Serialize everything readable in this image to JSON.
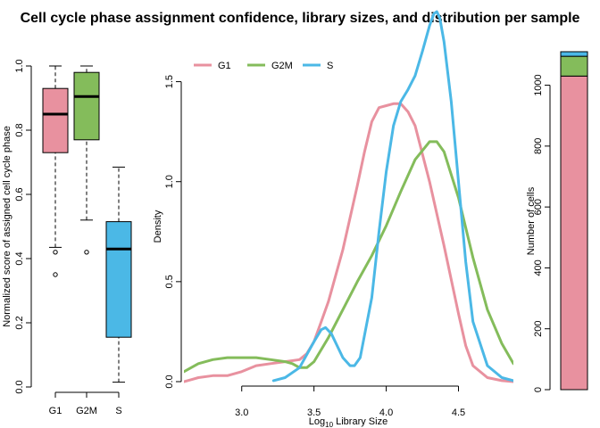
{
  "chart_data": [
    {
      "type": "box",
      "title": "Cell cycle phase assignment confidence, library sizes, and distribution per sample",
      "ylabel": "Normalized score of assigned cell cycle phase",
      "ylim": [
        0,
        1
      ],
      "yticks": [
        0.0,
        0.2,
        0.4,
        0.6,
        0.8,
        1.0
      ],
      "ytick_labels": [
        "0.0",
        "0.2",
        "0.4",
        "0.6",
        "0.8",
        "1.0"
      ],
      "categories": [
        "G1",
        "G2M",
        "S"
      ],
      "boxes": [
        {
          "name": "G1",
          "color": "#E8919F",
          "whisker_low": 0.435,
          "q1": 0.73,
          "median": 0.85,
          "q3": 0.93,
          "whisker_high": 1.0,
          "outliers": [
            0.42,
            0.35
          ]
        },
        {
          "name": "G2M",
          "color": "#84BC5B",
          "whisker_low": 0.52,
          "q1": 0.77,
          "median": 0.905,
          "q3": 0.98,
          "whisker_high": 1.0,
          "outliers": [
            0.42
          ]
        },
        {
          "name": "S",
          "color": "#4BB8E6",
          "whisker_low": 0.015,
          "q1": 0.155,
          "median": 0.43,
          "q3": 0.515,
          "whisker_high": 0.685,
          "outliers": []
        }
      ]
    },
    {
      "type": "line",
      "ylabel": "Density",
      "xlabel_prefix": "Log",
      "xlabel_sub": "10",
      "xlabel_suffix": " Library Size",
      "xlim": [
        2.6,
        4.88
      ],
      "ylim": [
        0,
        1.73
      ],
      "xticks": [
        3.0,
        3.5,
        4.0,
        4.5
      ],
      "xtick_labels": [
        "3.0",
        "3.5",
        "4.0",
        "4.5"
      ],
      "yticks": [
        0.0,
        0.5,
        1.0,
        1.5
      ],
      "ytick_labels": [
        "0.0",
        "0.5",
        "1.0",
        "1.5"
      ],
      "legend": [
        "G1",
        "G2M",
        "S"
      ],
      "series": [
        {
          "name": "G1",
          "color": "#E8919F",
          "x": [
            2.6,
            2.65,
            2.7,
            2.8,
            2.9,
            3.0,
            3.1,
            3.2,
            3.3,
            3.4,
            3.45,
            3.5,
            3.55,
            3.6,
            3.7,
            3.8,
            3.85,
            3.9,
            3.95,
            4.0,
            4.05,
            4.1,
            4.15,
            4.2,
            4.3,
            4.4,
            4.5,
            4.55,
            4.6,
            4.7,
            4.8,
            4.88
          ],
          "y": [
            0.0,
            0.01,
            0.02,
            0.03,
            0.03,
            0.05,
            0.08,
            0.09,
            0.1,
            0.11,
            0.14,
            0.2,
            0.3,
            0.4,
            0.66,
            0.98,
            1.15,
            1.3,
            1.37,
            1.38,
            1.39,
            1.39,
            1.35,
            1.28,
            1.0,
            0.68,
            0.34,
            0.18,
            0.08,
            0.02,
            0.005,
            0.0
          ]
        },
        {
          "name": "G2M",
          "color": "#84BC5B",
          "x": [
            2.6,
            2.7,
            2.8,
            2.9,
            3.0,
            3.1,
            3.2,
            3.3,
            3.35,
            3.4,
            3.45,
            3.5,
            3.6,
            3.7,
            3.8,
            3.9,
            4.0,
            4.1,
            4.2,
            4.3,
            4.35,
            4.4,
            4.5,
            4.6,
            4.7,
            4.8,
            4.88
          ],
          "y": [
            0.05,
            0.09,
            0.11,
            0.12,
            0.12,
            0.12,
            0.11,
            0.1,
            0.09,
            0.07,
            0.07,
            0.1,
            0.22,
            0.36,
            0.5,
            0.63,
            0.78,
            0.95,
            1.11,
            1.2,
            1.2,
            1.15,
            0.92,
            0.62,
            0.36,
            0.19,
            0.09
          ]
        },
        {
          "name": "S",
          "color": "#4BB8E6",
          "x": [
            3.22,
            3.3,
            3.4,
            3.5,
            3.55,
            3.58,
            3.62,
            3.7,
            3.75,
            3.78,
            3.82,
            3.9,
            3.95,
            4.0,
            4.05,
            4.1,
            4.15,
            4.2,
            4.25,
            4.3,
            4.33,
            4.35,
            4.37,
            4.4,
            4.45,
            4.5,
            4.55,
            4.6,
            4.7,
            4.8,
            4.88
          ],
          "y": [
            0.005,
            0.02,
            0.07,
            0.2,
            0.26,
            0.27,
            0.24,
            0.12,
            0.08,
            0.08,
            0.12,
            0.42,
            0.75,
            1.05,
            1.28,
            1.4,
            1.46,
            1.53,
            1.65,
            1.78,
            1.84,
            1.85,
            1.82,
            1.7,
            1.4,
            1.0,
            0.6,
            0.3,
            0.08,
            0.02,
            0.005
          ]
        }
      ]
    },
    {
      "type": "bar",
      "stacked": true,
      "ylabel": "Number of cells",
      "ylim": [
        0,
        1110
      ],
      "yticks": [
        0,
        200,
        400,
        600,
        800,
        1000
      ],
      "ytick_labels": [
        "0",
        "200",
        "400",
        "600",
        "800",
        "1000"
      ],
      "segments": [
        {
          "name": "G1",
          "color": "#E8919F",
          "value": 1030
        },
        {
          "name": "G2M",
          "color": "#84BC5B",
          "value": 65
        },
        {
          "name": "S",
          "color": "#4BB8E6",
          "value": 15
        }
      ]
    }
  ]
}
